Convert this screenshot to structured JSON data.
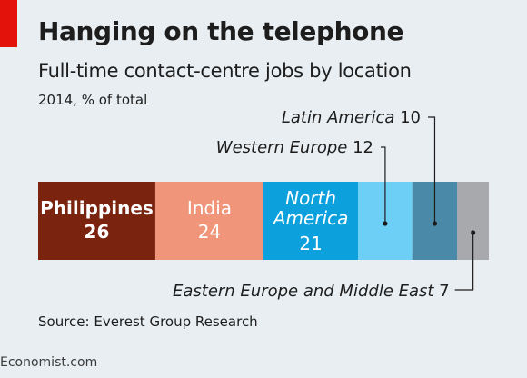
{
  "header": {
    "title": "Hanging on the telephone",
    "subtitle": "Full-time contact-centre jobs by location",
    "unit": "2014, % of total"
  },
  "footer": {
    "source": "Source: Everest Group Research",
    "brand": "Economist.com"
  },
  "colors": {
    "accent": "#e3120b",
    "background": "#e9eef2"
  },
  "chart_data": {
    "type": "bar",
    "orientation": "horizontal-stacked",
    "title": "Hanging on the telephone",
    "subtitle": "Full-time contact-centre jobs by location",
    "unit": "2014, % of total",
    "total": 100,
    "segments": [
      {
        "label": "Philippines",
        "value": 26,
        "label_style": "inside",
        "color": "#7a2410",
        "text_color": "#ffffff",
        "bold": true
      },
      {
        "label": "India",
        "value": 24,
        "label_style": "inside",
        "color": "#f0957a",
        "text_color": "#ffffff",
        "bold": false
      },
      {
        "label": "North America",
        "label_lines": [
          "North",
          "America"
        ],
        "value": 21,
        "label_style": "inside",
        "color": "#0ca1dd",
        "text_color": "#ffffff",
        "italic": true
      },
      {
        "label": "Western Europe",
        "value": 12,
        "label_style": "callout-above",
        "color": "#6dcff6",
        "text_color": "#1d1d1d"
      },
      {
        "label": "Latin America",
        "value": 10,
        "label_style": "callout-above",
        "color": "#4a89a7",
        "text_color": "#1d1d1d"
      },
      {
        "label": "Eastern Europe and Middle East",
        "value": 7,
        "label_style": "callout-below",
        "color": "#a7a9ac",
        "text_color": "#1d1d1d"
      }
    ]
  }
}
